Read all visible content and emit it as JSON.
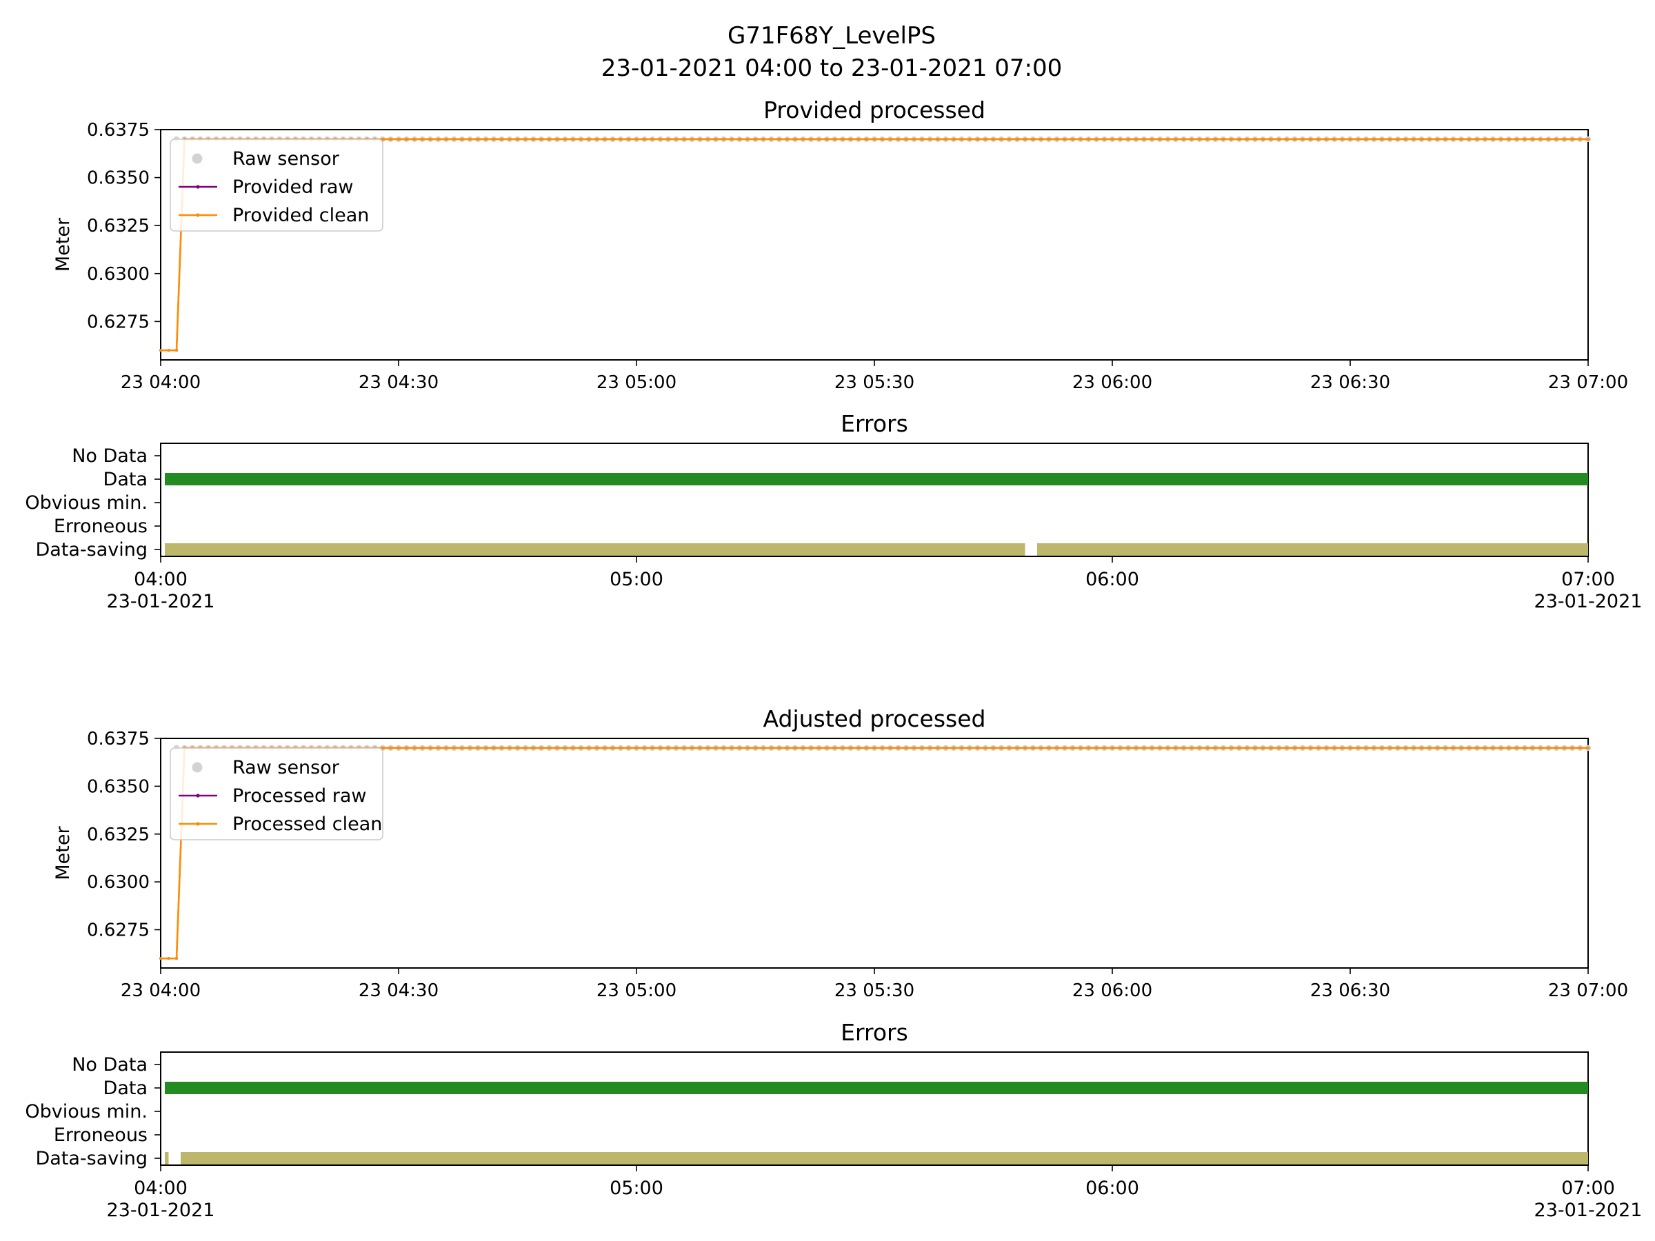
{
  "figure": {
    "title_line1": "G71F68Y_LevelPS",
    "title_line2": "23-01-2021 04:00 to 23-01-2021 07:00"
  },
  "colors": {
    "raw_sensor": "#d3d3d3",
    "raw_line": "#800080",
    "clean_line": "#ff8c00",
    "error_data": "#228b22",
    "error_saving": "#bdb76b"
  },
  "chart_data": [
    {
      "type": "line",
      "title": "Provided processed",
      "ylabel": "Meter",
      "xlim": [
        "2021-01-23 04:00",
        "2021-01-23 07:00"
      ],
      "ylim": [
        0.6255,
        0.6375
      ],
      "yticks": [
        0.6275,
        0.63,
        0.6325,
        0.635,
        0.6375
      ],
      "ytick_labels": [
        "0.6275",
        "0.6300",
        "0.6325",
        "0.6350",
        "0.6375"
      ],
      "xtick_labels": [
        "23 04:00",
        "23 04:30",
        "23 05:00",
        "23 05:30",
        "23 06:00",
        "23 06:30",
        "23 07:00"
      ],
      "sample_interval_minutes": 1,
      "legend": [
        "Raw sensor",
        "Provided raw",
        "Provided clean"
      ],
      "legend_position": "upper-left",
      "series": [
        {
          "name": "Raw sensor",
          "style": "marker",
          "segments": [
            {
              "from": "04:02",
              "to": "07:00",
              "value": 0.637
            }
          ]
        },
        {
          "name": "Provided raw",
          "style": "line",
          "segments": [
            {
              "from": "04:00",
              "to": "04:02",
              "value": 0.626
            },
            {
              "from": "04:03",
              "to": "07:00",
              "value": 0.637
            }
          ]
        },
        {
          "name": "Provided clean",
          "style": "line",
          "segments": [
            {
              "from": "04:00",
              "to": "04:02",
              "value": 0.626
            },
            {
              "from": "04:03",
              "to": "07:00",
              "value": 0.637
            }
          ]
        }
      ]
    },
    {
      "type": "timeline",
      "title": "Errors",
      "categories": [
        "No Data",
        "Data",
        "Obvious min.",
        "Erroneous",
        "Data-saving"
      ],
      "xlim": [
        "2021-01-23 04:00",
        "2021-01-23 07:00"
      ],
      "xtick_labels": [
        {
          "time": "04:00",
          "date": "23-01-2021"
        },
        {
          "time": "05:00",
          "date": ""
        },
        {
          "time": "06:00",
          "date": ""
        },
        {
          "time": "07:00",
          "date": "23-01-2021"
        }
      ],
      "bars": [
        {
          "category": "Data",
          "from": "04:00",
          "to": "07:00"
        },
        {
          "category": "Data-saving",
          "from": "04:00",
          "to": "05:49"
        },
        {
          "category": "Data-saving",
          "from": "05:50",
          "to": "07:00"
        }
      ]
    },
    {
      "type": "line",
      "title": "Adjusted processed",
      "ylabel": "Meter",
      "xlim": [
        "2021-01-23 04:00",
        "2021-01-23 07:00"
      ],
      "ylim": [
        0.6255,
        0.6375
      ],
      "yticks": [
        0.6275,
        0.63,
        0.6325,
        0.635,
        0.6375
      ],
      "ytick_labels": [
        "0.6275",
        "0.6300",
        "0.6325",
        "0.6350",
        "0.6375"
      ],
      "xtick_labels": [
        "23 04:00",
        "23 04:30",
        "23 05:00",
        "23 05:30",
        "23 06:00",
        "23 06:30",
        "23 07:00"
      ],
      "sample_interval_minutes": 1,
      "legend": [
        "Raw sensor",
        "Processed raw",
        "Processed clean"
      ],
      "legend_position": "upper-left",
      "series": [
        {
          "name": "Raw sensor",
          "style": "marker",
          "segments": [
            {
              "from": "04:02",
              "to": "07:00",
              "value": 0.637
            }
          ]
        },
        {
          "name": "Processed raw",
          "style": "line",
          "segments": [
            {
              "from": "04:00",
              "to": "04:02",
              "value": 0.626
            },
            {
              "from": "04:03",
              "to": "07:00",
              "value": 0.637
            }
          ]
        },
        {
          "name": "Processed clean",
          "style": "line",
          "segments": [
            {
              "from": "04:00",
              "to": "04:02",
              "value": 0.626
            },
            {
              "from": "04:03",
              "to": "07:00",
              "value": 0.637
            }
          ]
        }
      ]
    },
    {
      "type": "timeline",
      "title": "Errors",
      "categories": [
        "No Data",
        "Data",
        "Obvious min.",
        "Erroneous",
        "Data-saving"
      ],
      "xlim": [
        "2021-01-23 04:00",
        "2021-01-23 07:00"
      ],
      "xtick_labels": [
        {
          "time": "04:00",
          "date": "23-01-2021"
        },
        {
          "time": "05:00",
          "date": ""
        },
        {
          "time": "06:00",
          "date": ""
        },
        {
          "time": "07:00",
          "date": "23-01-2021"
        }
      ],
      "bars": [
        {
          "category": "Data",
          "from": "04:00",
          "to": "07:00"
        },
        {
          "category": "Data-saving",
          "from": "04:00",
          "to": "04:01"
        },
        {
          "category": "Data-saving",
          "from": "04:02",
          "to": "07:00"
        }
      ]
    }
  ]
}
